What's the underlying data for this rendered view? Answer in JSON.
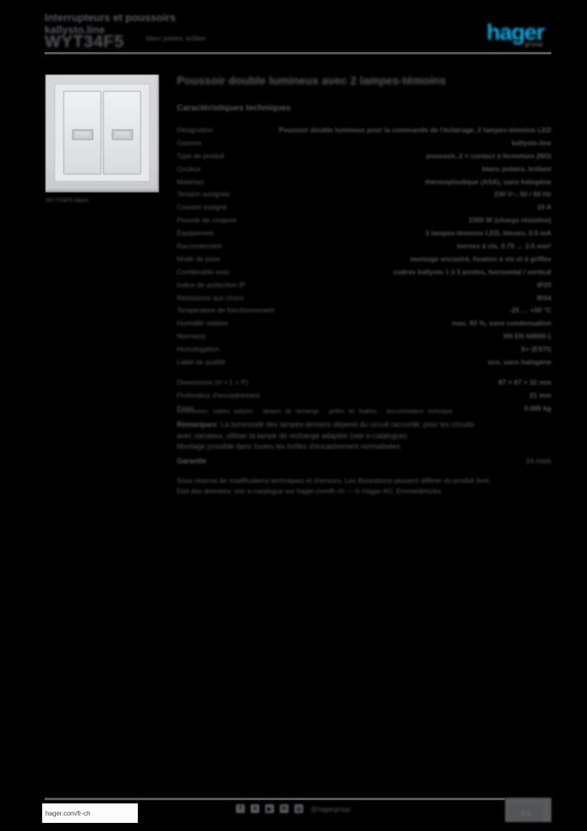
{
  "page": {
    "background": "#000000",
    "text_color": "#55585B",
    "accent_blue": "#1BA7E0",
    "separator_color": "#55585A"
  },
  "header": {
    "category_line1": "Interrupteurs et poussoirs",
    "category_line2": "kallysto.line",
    "reference": "WYT34F5",
    "variant": "blanc polaire, brillant",
    "logo_text": "hager",
    "logo_sub": "group"
  },
  "product": {
    "image_caption": "WYT34F5 blanc",
    "title": "Poussoir double lumineux avec 2 lampes-témoins",
    "section_heading": "Caractéristiques techniques"
  },
  "spec_table": {
    "rows": [
      {
        "label": "Désignation",
        "value": "Poussoir double lumineux pour la commande de l'éclairage, 2 lampes-témoins LED"
      },
      {
        "label": "Gamme",
        "value": "kallysto.line"
      },
      {
        "label": "Type de produit",
        "value": "poussoir, 2 × contact à fermeture (NO)"
      },
      {
        "label": "Couleur",
        "value": "blanc polaire, brillant"
      },
      {
        "label": "Matériau",
        "value": "thermoplastique (ASA), sans halogène"
      },
      {
        "label": "Tension assignée",
        "value": "230 V~, 50 / 60 Hz"
      },
      {
        "label": "Courant assigné",
        "value": "10 A"
      },
      {
        "label": "Pouvoir de coupure",
        "value": "2300 W (charge résistive)"
      },
      {
        "label": "Équipement",
        "value": "2 lampes-témoins LED, bleues, 0.5 mA"
      },
      {
        "label": "Raccordement",
        "value": "bornes à vis, 0.75 … 2.5 mm²"
      },
      {
        "label": "Mode de pose",
        "value": "montage encastré, fixation à vis et à griffes"
      },
      {
        "label": "Combinable avec",
        "value": "cadres kallysto 1 à 5 postes, horizontal / vertical"
      },
      {
        "label": "Indice de protection IP",
        "value": "IP20"
      },
      {
        "label": "Résistance aux chocs",
        "value": "IK04"
      },
      {
        "label": "Température de fonctionnement",
        "value": "-25 … +50 °C"
      },
      {
        "label": "Humidité relative",
        "value": "max. 93 %, sans condensation"
      },
      {
        "label": "Norme(s)",
        "value": "SN EN 60669-1"
      },
      {
        "label": "Homologation",
        "value": "S+ (ESTI)"
      },
      {
        "label": "Label de qualité",
        "value": "eco, sans halogène"
      }
    ]
  },
  "dimensions_table": {
    "rows": [
      {
        "label": "Dimensions (H × L × P)",
        "value": "87 × 87 × 32 mm"
      },
      {
        "label": "Profondeur d'encastrement",
        "value": "21 mm"
      },
      {
        "label": "Poids",
        "value": "0.086 kg"
      }
    ]
  },
  "accessories_line": "Accessoires: cadres kallysto · lampes de rechange · griffes de fixation · documentation technique",
  "remarks": {
    "label": "Remarques:",
    "lines": [
      "La luminosité des lampes-témoins dépend du circuit raccordé; pour les circuits",
      "avec variateur, utiliser la lampe de rechange adaptée (voir e-catalogue).",
      "Montage possible dans toutes les boîtes d'encastrement normalisées."
    ]
  },
  "warranty_row": {
    "label": "Garantie",
    "value": "24 mois"
  },
  "legal_lines": [
    "Sous réserve de modifications techniques et d'erreurs. Les illustrations peuvent différer du produit livré.",
    "Etat des données: voir e-catalogue sur hager.com/fr-ch — © Hager AG, Emmenbrücke."
  ],
  "footer": {
    "website": "hager.com/fr-ch",
    "icons": [
      {
        "name": "facebook-icon",
        "glyph": "f"
      },
      {
        "name": "x-icon",
        "glyph": "x"
      },
      {
        "name": "youtube-icon",
        "glyph": "▶"
      },
      {
        "name": "linkedin-icon",
        "glyph": "in"
      },
      {
        "name": "instagram-icon",
        "glyph": "◎"
      }
    ],
    "handle": "@hagergroup",
    "page_box": "1/1"
  }
}
